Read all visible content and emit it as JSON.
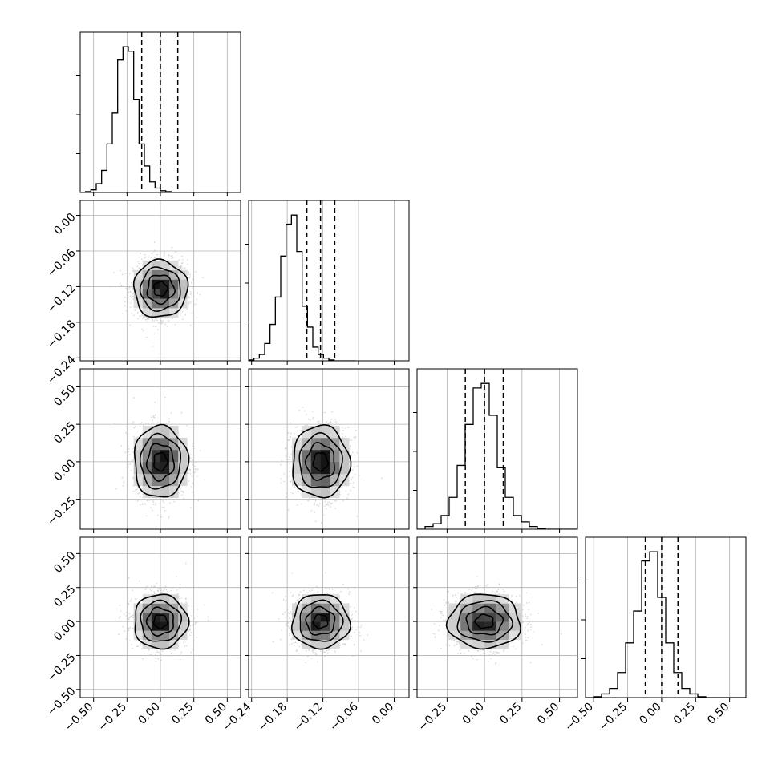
{
  "chart_data": {
    "type": "corner",
    "title": "",
    "parameters": [
      {
        "xlim": [
          -0.6,
          0.6
        ],
        "ticks": [
          -0.5,
          -0.25,
          0.0,
          0.25,
          0.5
        ],
        "tick_labels": [
          "−0.50",
          "−0.25",
          "0.00",
          "0.25",
          "0.50"
        ],
        "quantiles": [
          -0.14,
          0.0,
          0.13
        ],
        "center": 0.0,
        "sd": 0.1
      },
      {
        "xlim": [
          -0.245,
          0.025
        ],
        "ticks": [
          -0.24,
          -0.18,
          -0.12,
          -0.06,
          0.0
        ],
        "tick_labels": [
          "−0.24",
          "−0.18",
          "−0.12",
          "−0.06",
          "0.00"
        ],
        "quantiles": [
          -0.147,
          -0.124,
          -0.1
        ],
        "center": -0.124,
        "sd": 0.024
      },
      {
        "xlim": [
          -0.45,
          0.62
        ],
        "ticks": [
          -0.25,
          0.0,
          0.25,
          0.5
        ],
        "tick_labels": [
          "−0.25",
          "0.00",
          "0.25",
          "0.50"
        ],
        "quantiles": [
          -0.128,
          0.0,
          0.125
        ],
        "center": 0.0,
        "sd": 0.12
      },
      {
        "xlim": [
          -0.56,
          0.62
        ],
        "ticks": [
          -0.5,
          -0.25,
          0.0,
          0.25,
          0.5
        ],
        "tick_labels": [
          "−0.50",
          "−0.25",
          "0.00",
          "0.25",
          "0.50"
        ],
        "quantiles": [
          -0.12,
          0.0,
          0.12
        ],
        "center": 0.0,
        "sd": 0.1
      }
    ],
    "diagonal_histograms": [
      {
        "bin_start": -0.6,
        "bin_width": 0.04,
        "counts": [
          0,
          2,
          6,
          20,
          50,
          110,
          180,
          300,
          330,
          320,
          210,
          110,
          60,
          24,
          10,
          4,
          2,
          0,
          0,
          0
        ]
      },
      {
        "bin_start": -0.245,
        "bin_width": 0.009,
        "counts": [
          2,
          6,
          14,
          38,
          80,
          140,
          230,
          300,
          320,
          240,
          120,
          74,
          30,
          14,
          6,
          2,
          0,
          0,
          0,
          0
        ]
      },
      {
        "bin_start": -0.45,
        "bin_width": 0.0535,
        "counts": [
          0,
          6,
          12,
          30,
          70,
          140,
          230,
          310,
          320,
          250,
          135,
          70,
          30,
          16,
          6,
          2,
          0,
          0,
          0,
          0
        ]
      },
      {
        "bin_start": -0.56,
        "bin_width": 0.059,
        "counts": [
          0,
          2,
          8,
          20,
          55,
          120,
          190,
          300,
          320,
          220,
          120,
          55,
          20,
          8,
          2,
          0,
          0,
          0,
          0,
          0
        ]
      }
    ],
    "contour_levels_sigma": [
      0.5,
      1.0,
      1.5,
      2.0
    ],
    "grid": true,
    "legend": "none"
  }
}
